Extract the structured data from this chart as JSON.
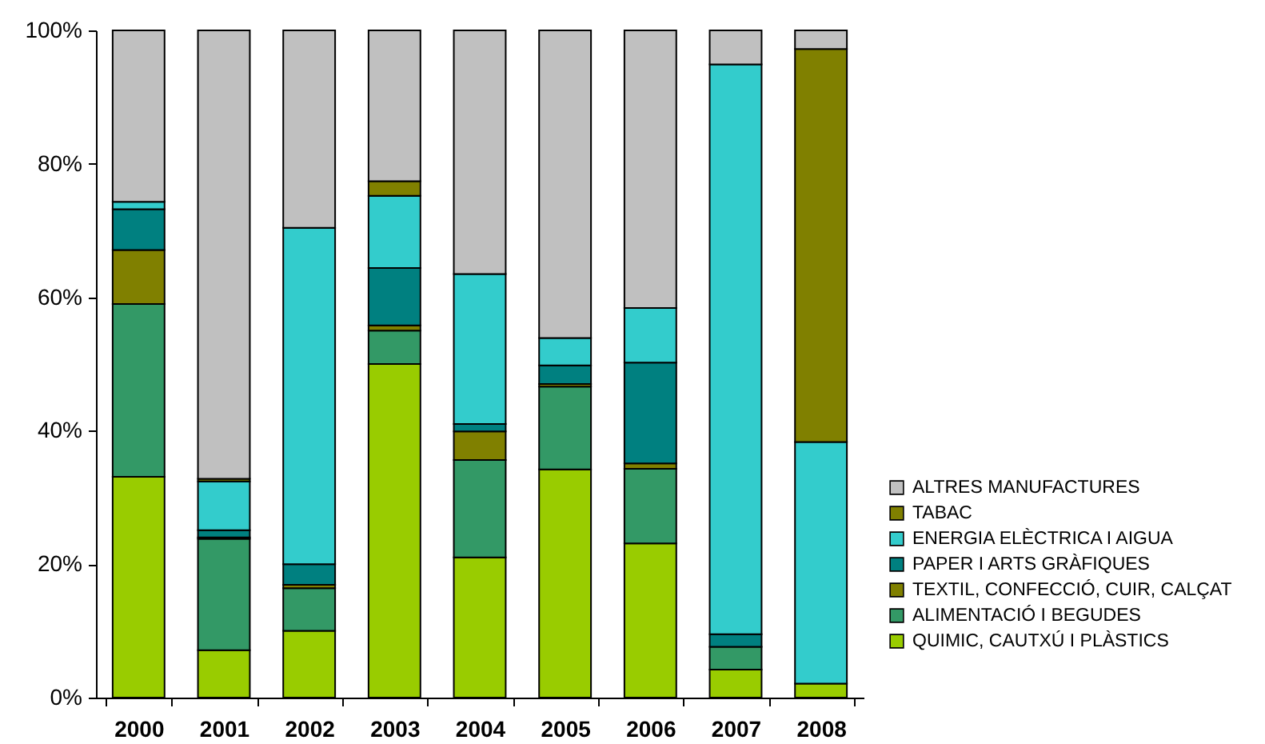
{
  "chart_data": {
    "type": "bar",
    "stacked": true,
    "categories": [
      "2000",
      "2001",
      "2002",
      "2003",
      "2004",
      "2005",
      "2006",
      "2007",
      "2008"
    ],
    "series": [
      {
        "name": "QUIMIC, CAUTXÚ I PLÀSTICS",
        "color": "#99cc00",
        "values": [
          33.1,
          7.1,
          10.0,
          50.0,
          21.0,
          34.2,
          23.1,
          4.2,
          2.1
        ]
      },
      {
        "name": "ALIMENTACIÓ I BEGUDES",
        "color": "#339966",
        "values": [
          25.9,
          16.7,
          6.4,
          5.0,
          14.6,
          12.4,
          11.2,
          3.4,
          0
        ]
      },
      {
        "name": "TEXTIL, CONFECCIÓ, CUIR, CALÇAT",
        "color": "#808000",
        "values": [
          8.1,
          0.2,
          0.5,
          0.8,
          4.3,
          0.4,
          0.8,
          null,
          0
        ]
      },
      {
        "name": "PAPER I ARTS GRÀFIQUES",
        "color": "#008080",
        "values": [
          6.1,
          1.1,
          3.1,
          8.6,
          1.1,
          2.8,
          15.1,
          1.9,
          null
        ]
      },
      {
        "name": "ENERGIA ELÈCTRICA I AIGUA",
        "color": "#33cccc",
        "values": [
          1.1,
          7.3,
          50.4,
          10.8,
          22.5,
          4.1,
          8.2,
          85.4,
          36.2
        ]
      },
      {
        "name": "TABAC",
        "color": "#808000",
        "values": [
          0,
          0.4,
          0,
          2.2,
          0,
          0,
          0,
          0,
          58.9
        ]
      },
      {
        "name": "ALTRES MANUFACTURES",
        "color": "#c0c0c0",
        "values": [
          25.7,
          67.2,
          29.6,
          22.6,
          36.5,
          46.1,
          41.6,
          5.1,
          2.8
        ]
      }
    ],
    "ylim": [
      0,
      100
    ],
    "yticks": [
      {
        "value": 0,
        "label": "0%"
      },
      {
        "value": 20,
        "label": "20%"
      },
      {
        "value": 40,
        "label": "40%"
      },
      {
        "value": 60,
        "label": "60%"
      },
      {
        "value": 80,
        "label": "80%"
      },
      {
        "value": 100,
        "label": "100%"
      }
    ],
    "grid": false,
    "legend": "right"
  }
}
